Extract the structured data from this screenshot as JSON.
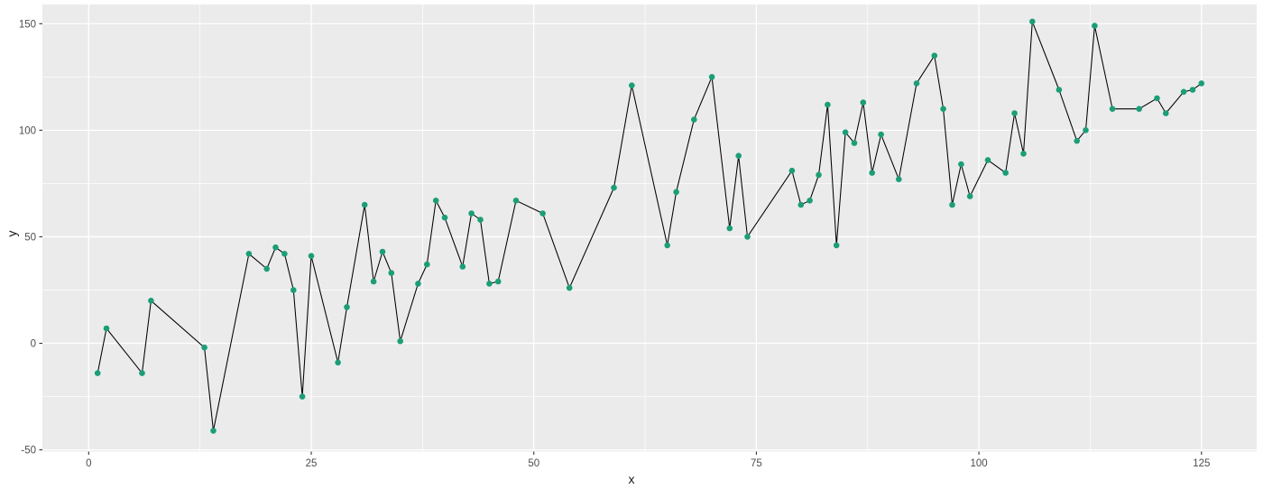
{
  "chart_data": {
    "type": "line",
    "title": "",
    "xlabel": "x",
    "ylabel": "y",
    "x": [
      1,
      2,
      6,
      7,
      13,
      14,
      18,
      20,
      21,
      22,
      23,
      24,
      25,
      28,
      29,
      31,
      32,
      33,
      34,
      35,
      37,
      38,
      39,
      40,
      42,
      43,
      44,
      45,
      46,
      48,
      51,
      54,
      59,
      61,
      65,
      66,
      68,
      70,
      72,
      73,
      74,
      79,
      80,
      81,
      82,
      83,
      84,
      85,
      86,
      87,
      88,
      89,
      91,
      93,
      95,
      96,
      97,
      98,
      99,
      101,
      103,
      104,
      105,
      106,
      109,
      111,
      112,
      113,
      115,
      118,
      120,
      121,
      123,
      124,
      125
    ],
    "y": [
      -14,
      7,
      -14,
      20,
      -2,
      -41,
      42,
      35,
      45,
      42,
      25,
      -25,
      41,
      -9,
      17,
      65,
      29,
      43,
      33,
      1,
      28,
      37,
      67,
      59,
      36,
      61,
      58,
      28,
      29,
      67,
      61,
      26,
      73,
      121,
      46,
      71,
      105,
      125,
      54,
      88,
      50,
      81,
      65,
      67,
      79,
      112,
      46,
      99,
      94,
      113,
      80,
      98,
      77,
      122,
      135,
      110,
      65,
      84,
      69,
      86,
      80,
      108,
      89,
      151,
      119,
      95,
      100,
      149,
      110,
      110,
      115,
      108,
      118,
      119,
      122
    ],
    "x_ticks": [
      0,
      25,
      50,
      75,
      100,
      125
    ],
    "y_ticks": [
      -50,
      0,
      50,
      100,
      150
    ],
    "x_minor_ticks": [
      12.5,
      37.5,
      62.5,
      87.5,
      112.5
    ],
    "y_minor_ticks": [
      -25,
      25,
      75,
      125
    ],
    "xlim": [
      -5.2,
      131.2
    ],
    "ylim": [
      -50.8,
      159.0
    ],
    "grid": "on",
    "legend": "none",
    "style": {
      "panel_bg": "#EBEBEB",
      "grid_color": "#FFFFFF",
      "line_color": "#000000",
      "point_color": "#1b9e77",
      "tick_color": "#333333",
      "tick_label_color": "#4D4D4D",
      "axis_title_color": "#1a1a1a",
      "outer_bg": "#FFFFFF"
    }
  }
}
